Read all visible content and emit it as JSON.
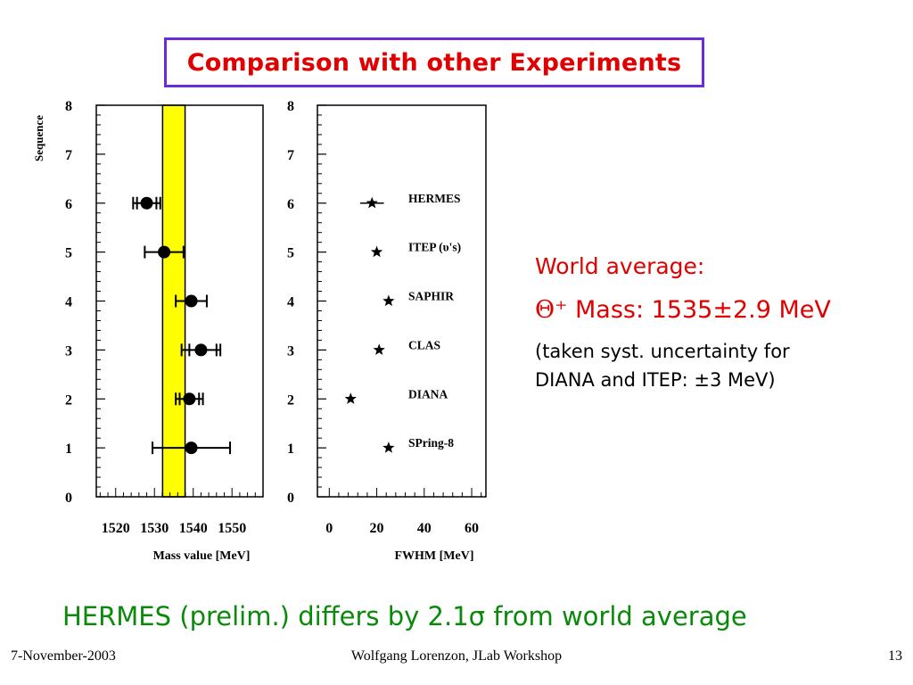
{
  "title": "Comparison with other Experiments",
  "chart_data": [
    {
      "type": "scatter",
      "xlabel": "Mass value  [MeV]",
      "ylabel": "Sequence",
      "xlim": [
        1515,
        1558
      ],
      "ylim": [
        0,
        8
      ],
      "xticks": [
        "1520",
        "1530",
        "1540",
        "1550"
      ],
      "yticks": [
        "0",
        "1",
        "2",
        "3",
        "4",
        "5",
        "6",
        "7",
        "8"
      ],
      "band": {
        "from": 1532.1,
        "to": 1537.9,
        "color": "#ffff00"
      },
      "points": [
        {
          "seq": 6,
          "x": 1528,
          "xerr_lo": 1525.5,
          "xerr_hi": 1530.5,
          "sys_lo": 1524.5,
          "sys_hi": 1531.5
        },
        {
          "seq": 5,
          "x": 1532.5,
          "xerr_lo": 1527.5,
          "xerr_hi": 1537.5,
          "sys_lo": 1527.5,
          "sys_hi": 1537.5
        },
        {
          "seq": 4,
          "x": 1539.5,
          "xerr_lo": 1535.5,
          "xerr_hi": 1543.5,
          "sys_lo": 1535.5,
          "sys_hi": 1543.5
        },
        {
          "seq": 3,
          "x": 1542,
          "xerr_lo": 1539,
          "xerr_hi": 1546,
          "sys_lo": 1537,
          "sys_hi": 1547
        },
        {
          "seq": 2,
          "x": 1539,
          "xerr_lo": 1536.5,
          "xerr_hi": 1541.5,
          "sys_lo": 1535.5,
          "sys_hi": 1542.5
        },
        {
          "seq": 1,
          "x": 1539.5,
          "xerr_lo": 1529.5,
          "xerr_hi": 1549.5,
          "sys_lo": 1529.5,
          "sys_hi": 1549.5
        }
      ]
    },
    {
      "type": "scatter",
      "xlabel": "FWHM  [MeV]",
      "xlim": [
        -5,
        66
      ],
      "ylim": [
        0,
        8
      ],
      "xticks": [
        "0",
        "20",
        "40",
        "60"
      ],
      "yticks": [
        "0",
        "1",
        "2",
        "3",
        "4",
        "5",
        "6",
        "7",
        "8"
      ],
      "points": [
        {
          "seq": 6,
          "x": 18,
          "err": 5,
          "label": "HERMES"
        },
        {
          "seq": 5,
          "x": 20,
          "label": "ITEP (υ's)"
        },
        {
          "seq": 4,
          "x": 25,
          "label": "SAPHIR"
        },
        {
          "seq": 3,
          "x": 21,
          "label": "CLAS"
        },
        {
          "seq": 2,
          "x": 9,
          "label": "DIANA"
        },
        {
          "seq": 1,
          "x": 25,
          "label": "SPring-8"
        }
      ]
    }
  ],
  "world_average": {
    "heading": "World average:",
    "mass_symbol": "Θ⁺",
    "mass_text": "Mass: 1535±2.9 MeV",
    "note_line1": "(taken syst. uncertainty for",
    "note_line2": "DIANA and ITEP: ±3 MeV)"
  },
  "conclusion": "HERMES (prelim.) differs by 2.1σ from world average",
  "footer": {
    "date": "7-November-2003",
    "center": "Wolfgang Lorenzon, JLab Workshop",
    "page": "13"
  },
  "colors": {
    "title": "#e00000",
    "title_border": "#6b2bd6",
    "band": "#ffff00",
    "conclusion": "#0a8a0a"
  }
}
